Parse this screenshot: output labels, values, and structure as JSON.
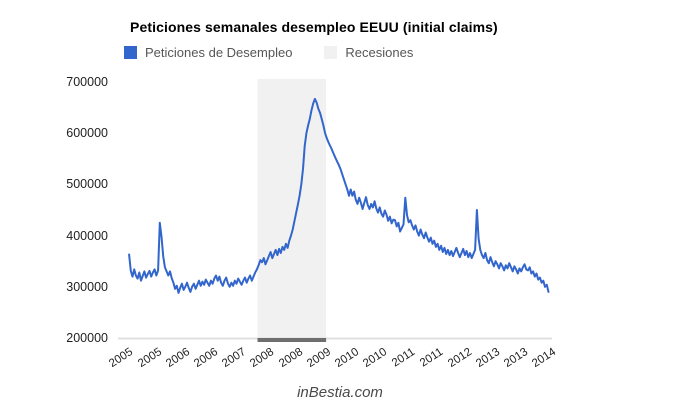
{
  "header": {
    "title": "Peticiones semanales desempleo EEUU (initial claims)"
  },
  "legend": {
    "items": [
      {
        "label": "Peticiones de Desempleo",
        "color": "#3366cc"
      },
      {
        "label": "Recesiones",
        "color": "#f1f1f1"
      }
    ]
  },
  "watermark": "inBestia.com",
  "chart_data": {
    "type": "line",
    "title": "Peticiones semanales desempleo EEUU (initial claims)",
    "xlabel": "",
    "ylabel": "",
    "grid": false,
    "legend_position": "top",
    "colors": {
      "line": "#3366cc",
      "band": "#f1f1f1",
      "baseline": "#e0e0e0",
      "recession_baseline": "#6e6e6e"
    },
    "y_axis": {
      "min": 200000,
      "max": 700000,
      "ticks": [
        200000,
        300000,
        400000,
        500000,
        600000,
        700000
      ]
    },
    "x_axis": {
      "min": 2004.75,
      "max": 2014.55,
      "tick_labels": [
        "2005",
        "2005",
        "2006",
        "2006",
        "2007",
        "2008",
        "2008",
        "2009",
        "2010",
        "2010",
        "2011",
        "2011",
        "2012",
        "2013",
        "2013",
        "2014"
      ]
    },
    "recession_band": {
      "label": "Recesiones",
      "start": 2007.9,
      "end": 2009.45
    },
    "series": [
      {
        "name": "Peticiones de Desempleo",
        "x_start": 2005.0,
        "x_end": 2014.47,
        "values": [
          363000,
          331000,
          320000,
          334000,
          322000,
          316000,
          328000,
          312000,
          321000,
          330000,
          318000,
          325000,
          331000,
          320000,
          328000,
          334000,
          322000,
          332000,
          425000,
          398000,
          360000,
          338000,
          330000,
          322000,
          330000,
          317000,
          308000,
          296000,
          302000,
          288000,
          298000,
          306000,
          294000,
          300000,
          308000,
          298000,
          290000,
          300000,
          306000,
          296000,
          304000,
          312000,
          302000,
          310000,
          304000,
          314000,
          308000,
          302000,
          312000,
          306000,
          316000,
          322000,
          312000,
          320000,
          308000,
          302000,
          312000,
          318000,
          306000,
          300000,
          308000,
          302000,
          312000,
          306000,
          316000,
          310000,
          304000,
          312000,
          318000,
          308000,
          316000,
          322000,
          312000,
          320000,
          328000,
          334000,
          342000,
          352000,
          348000,
          356000,
          344000,
          352000,
          360000,
          368000,
          356000,
          364000,
          372000,
          362000,
          374000,
          366000,
          378000,
          372000,
          384000,
          376000,
          390000,
          400000,
          412000,
          428000,
          444000,
          460000,
          478000,
          500000,
          530000,
          575000,
          600000,
          615000,
          628000,
          645000,
          658000,
          667000,
          660000,
          648000,
          640000,
          628000,
          615000,
          600000,
          590000,
          582000,
          575000,
          568000,
          560000,
          552000,
          545000,
          538000,
          530000,
          520000,
          510000,
          500000,
          490000,
          478000,
          490000,
          478000,
          486000,
          470000,
          462000,
          474000,
          464000,
          452000,
          464000,
          475000,
          460000,
          452000,
          462000,
          455000,
          467000,
          453000,
          445000,
          455000,
          443000,
          437000,
          449000,
          441000,
          429000,
          437000,
          424000,
          431000,
          430000,
          418000,
          425000,
          408000,
          415000,
          422000,
          474000,
          440000,
          426000,
          430000,
          420000,
          412000,
          420000,
          408000,
          400000,
          412000,
          402000,
          395000,
          406000,
          396000,
          388000,
          396000,
          384000,
          390000,
          378000,
          384000,
          372000,
          380000,
          368000,
          376000,
          364000,
          372000,
          362000,
          370000,
          360000,
          368000,
          376000,
          366000,
          358000,
          366000,
          374000,
          362000,
          370000,
          358000,
          366000,
          356000,
          364000,
          372000,
          450000,
          394000,
          372000,
          362000,
          356000,
          366000,
          352000,
          346000,
          358000,
          348000,
          340000,
          350000,
          344000,
          336000,
          346000,
          340000,
          332000,
          342000,
          336000,
          346000,
          338000,
          330000,
          340000,
          334000,
          326000,
          336000,
          330000,
          338000,
          344000,
          334000,
          332000,
          338000,
          326000,
          330000,
          320000,
          326000,
          314000,
          318000,
          308000,
          312000,
          300000,
          304000,
          290000
        ]
      }
    ]
  }
}
